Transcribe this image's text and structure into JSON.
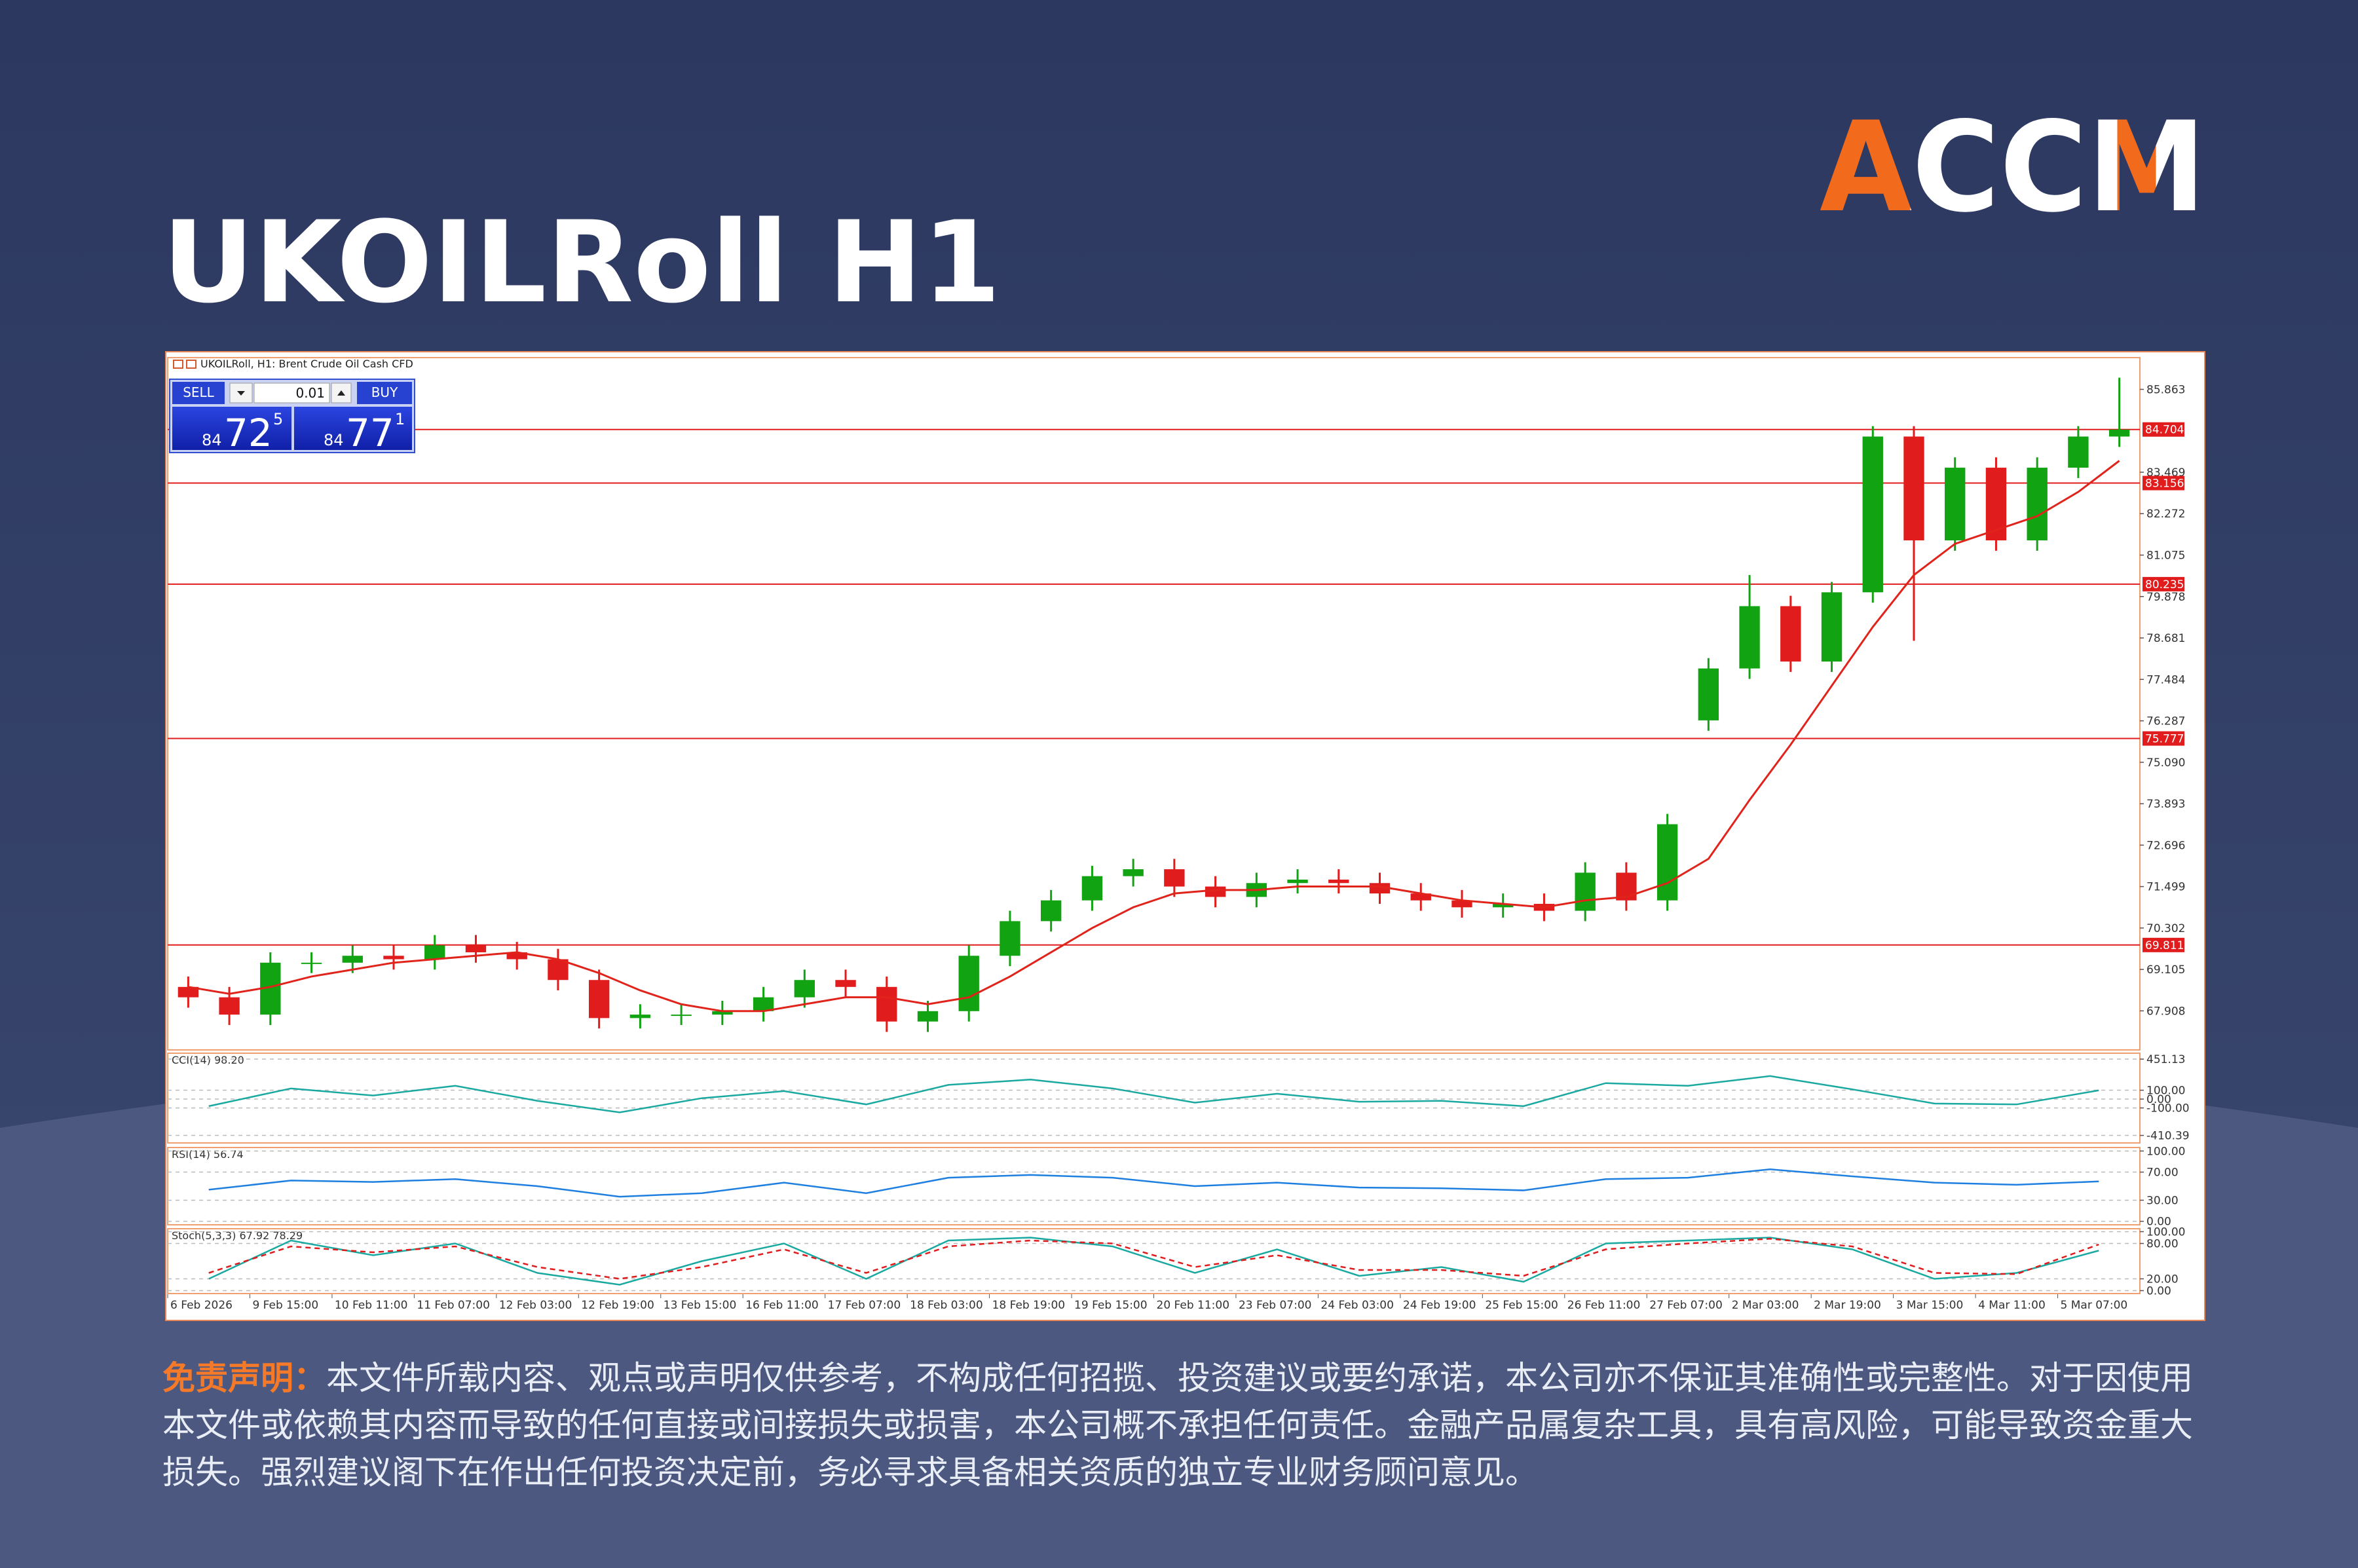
{
  "title": "UKOILRoll H1",
  "logo": "ACCM",
  "trade_panel": {
    "sell": "SELL",
    "lot": "0.01",
    "buy": "BUY",
    "bid": {
      "big": "84",
      "main": "72",
      "pip": "5"
    },
    "ask": {
      "big": "84",
      "main": "77",
      "pip": "1"
    }
  },
  "disclaimer": {
    "label": "免责声明：",
    "text": "本文件所载内容、观点或声明仅供参考，不构成任何招揽、投资建议或要约承诺，本公司亦不保证其准确性或完整性。对于因使用本文件或依赖其内容而导致的任何直接或间接损失或损害，本公司概不承担任何责任。金融产品属复杂工具，具有高风险，可能导致资金重大损失。强烈建议阁下在作出任何投资决定前，务必寻求具备相关资质的独立专业财务顾问意见。"
  },
  "chart_data": [
    {
      "type": "candlestick",
      "title": "UKOILRoll, H1: Brent Crude Oil Cash CFD",
      "categories": [
        "6 Feb 2026",
        null,
        "9 Feb 15:00",
        null,
        "10 Feb 11:00",
        null,
        "11 Feb 07:00",
        null,
        "12 Feb 03:00",
        null,
        "12 Feb 19:00",
        null,
        "13 Feb 15:00",
        null,
        "16 Feb 11:00",
        null,
        "17 Feb 07:00",
        null,
        "18 Feb 03:00",
        null,
        "18 Feb 19:00",
        null,
        "19 Feb 15:00",
        null,
        "20 Feb 11:00",
        null,
        "23 Feb 07:00",
        null,
        "24 Feb 03:00",
        null,
        "24 Feb 19:00",
        null,
        "25 Feb 15:00",
        null,
        "26 Feb 11:00",
        null,
        "27 Feb 07:00",
        null,
        "2 Mar 03:00",
        null,
        "2 Mar 19:00",
        null,
        "3 Mar 15:00",
        null,
        "4 Mar 11:00",
        null,
        "5 Mar 07:00",
        null
      ],
      "open": [
        68.6,
        68.3,
        67.8,
        69.3,
        69.3,
        69.5,
        69.4,
        69.8,
        69.6,
        69.4,
        68.8,
        67.7,
        67.8,
        67.8,
        67.9,
        68.3,
        68.8,
        68.6,
        67.6,
        67.9,
        69.5,
        70.5,
        71.1,
        71.8,
        72.0,
        71.5,
        71.2,
        71.6,
        71.7,
        71.6,
        71.3,
        71.1,
        70.9,
        71.0,
        70.8,
        71.9,
        71.1,
        76.3,
        77.8,
        79.6,
        78.0,
        80.0,
        84.5,
        81.5,
        83.6,
        81.5,
        83.6,
        84.5
      ],
      "high": [
        68.9,
        68.6,
        69.6,
        69.6,
        69.8,
        69.8,
        70.1,
        70.1,
        69.9,
        69.7,
        69.1,
        68.1,
        68.1,
        68.2,
        68.6,
        69.1,
        69.1,
        68.9,
        68.2,
        69.8,
        70.8,
        71.4,
        72.1,
        72.3,
        72.3,
        71.8,
        71.9,
        72.0,
        72.0,
        71.9,
        71.6,
        71.4,
        71.3,
        71.3,
        72.2,
        72.2,
        73.6,
        78.1,
        80.5,
        79.9,
        80.3,
        84.8,
        84.8,
        83.9,
        83.9,
        83.9,
        84.8,
        86.2
      ],
      "low": [
        68.0,
        67.5,
        67.5,
        69.0,
        69.0,
        69.1,
        69.1,
        69.3,
        69.1,
        68.5,
        67.4,
        67.4,
        67.5,
        67.5,
        67.6,
        68.0,
        68.3,
        67.3,
        67.3,
        67.6,
        69.2,
        70.2,
        70.8,
        71.5,
        71.2,
        70.9,
        70.9,
        71.3,
        71.3,
        71.0,
        70.8,
        70.6,
        70.6,
        70.5,
        70.5,
        70.8,
        70.8,
        76.0,
        77.5,
        77.7,
        77.7,
        79.7,
        78.6,
        81.2,
        81.2,
        81.2,
        83.3,
        84.2
      ],
      "close": [
        68.3,
        67.8,
        69.3,
        69.3,
        69.5,
        69.4,
        69.8,
        69.6,
        69.4,
        68.8,
        67.7,
        67.8,
        67.8,
        67.9,
        68.3,
        68.8,
        68.6,
        67.6,
        67.9,
        69.5,
        70.5,
        71.1,
        71.8,
        72.0,
        71.5,
        71.2,
        71.6,
        71.7,
        71.6,
        71.3,
        71.1,
        70.9,
        71.0,
        70.8,
        71.9,
        71.1,
        73.3,
        77.8,
        79.6,
        78.0,
        80.0,
        84.5,
        81.5,
        83.6,
        81.5,
        83.6,
        84.5,
        84.7
      ],
      "up_color": "#12a312",
      "down_color": "#e01c1c",
      "ma": {
        "color": "#e0241b",
        "values": [
          68.6,
          68.4,
          68.6,
          68.9,
          69.1,
          69.3,
          69.4,
          69.5,
          69.6,
          69.4,
          69.0,
          68.5,
          68.1,
          67.9,
          67.9,
          68.1,
          68.3,
          68.3,
          68.1,
          68.3,
          68.9,
          69.6,
          70.3,
          70.9,
          71.3,
          71.4,
          71.4,
          71.5,
          71.5,
          71.5,
          71.3,
          71.1,
          71.0,
          70.9,
          71.1,
          71.2,
          71.6,
          72.3,
          74.0,
          75.6,
          77.3,
          79.0,
          80.5,
          81.4,
          81.8,
          82.2,
          82.9,
          83.8
        ]
      },
      "hlines": [
        84.704,
        83.156,
        80.235,
        75.777,
        69.811
      ],
      "hline_color": "#e01c1c",
      "ylim": [
        66.78,
        86.78
      ],
      "yticks": [
        67.908,
        69.105,
        70.302,
        71.499,
        72.696,
        73.893,
        {
          "value": 75.09,
          "label": "75.090"
        },
        76.287,
        77.484,
        78.681,
        79.878,
        81.075,
        82.272,
        83.469,
        85.863
      ],
      "grid": false
    },
    {
      "type": "line",
      "title": "CCI(14) 98.20",
      "series": [
        {
          "color": "#1aa9a0",
          "values": [
            -80,
            120,
            40,
            150,
            -20,
            -150,
            10,
            90,
            -60,
            160,
            220,
            120,
            -40,
            60,
            -30,
            -20,
            -80,
            180,
            150,
            260,
            110,
            -50,
            -60,
            98.2
          ]
        }
      ],
      "ylim": [
        -495,
        518
      ],
      "yticks": [
        451.13,
        {
          "value": 100,
          "label": "100.00"
        },
        {
          "value": 0,
          "label": "0.00"
        },
        {
          "value": -100,
          "label": "-100.00"
        },
        -410.39
      ],
      "grid": true
    },
    {
      "type": "line",
      "title": "RSI(14) 56.74",
      "series": [
        {
          "color": "#1e7fe0",
          "values": [
            45,
            58,
            56,
            60,
            50,
            35,
            40,
            55,
            40,
            62,
            66,
            62,
            50,
            55,
            48,
            47,
            44,
            60,
            62,
            74,
            64,
            55,
            52,
            56.74
          ]
        }
      ],
      "ylim": [
        -5,
        105
      ],
      "yticks": [
        {
          "value": 100,
          "label": "100.00"
        },
        {
          "value": 70,
          "label": "70.00"
        },
        {
          "value": 30,
          "label": "30.00"
        },
        {
          "value": 0,
          "label": "0.00"
        }
      ],
      "grid": true
    },
    {
      "type": "line",
      "title": "Stoch(5,3,3) 67.92 78.29",
      "series": [
        {
          "color": "#1aa9a0",
          "values": [
            20,
            85,
            60,
            80,
            30,
            10,
            50,
            80,
            20,
            85,
            90,
            75,
            30,
            70,
            25,
            40,
            15,
            80,
            85,
            90,
            70,
            20,
            30,
            67.92
          ]
        },
        {
          "color": "#e01c1c",
          "dash": true,
          "values": [
            30,
            75,
            65,
            75,
            40,
            20,
            40,
            70,
            30,
            75,
            85,
            80,
            40,
            60,
            35,
            35,
            25,
            70,
            80,
            88,
            75,
            30,
            28,
            78.29
          ]
        }
      ],
      "ylim": [
        -5,
        105
      ],
      "yticks": [
        {
          "value": 100,
          "label": "100.00"
        },
        {
          "value": 80,
          "label": "80.00"
        },
        {
          "value": 20,
          "label": "20.00"
        },
        {
          "value": 0,
          "label": "0.00"
        }
      ],
      "grid": true
    }
  ]
}
